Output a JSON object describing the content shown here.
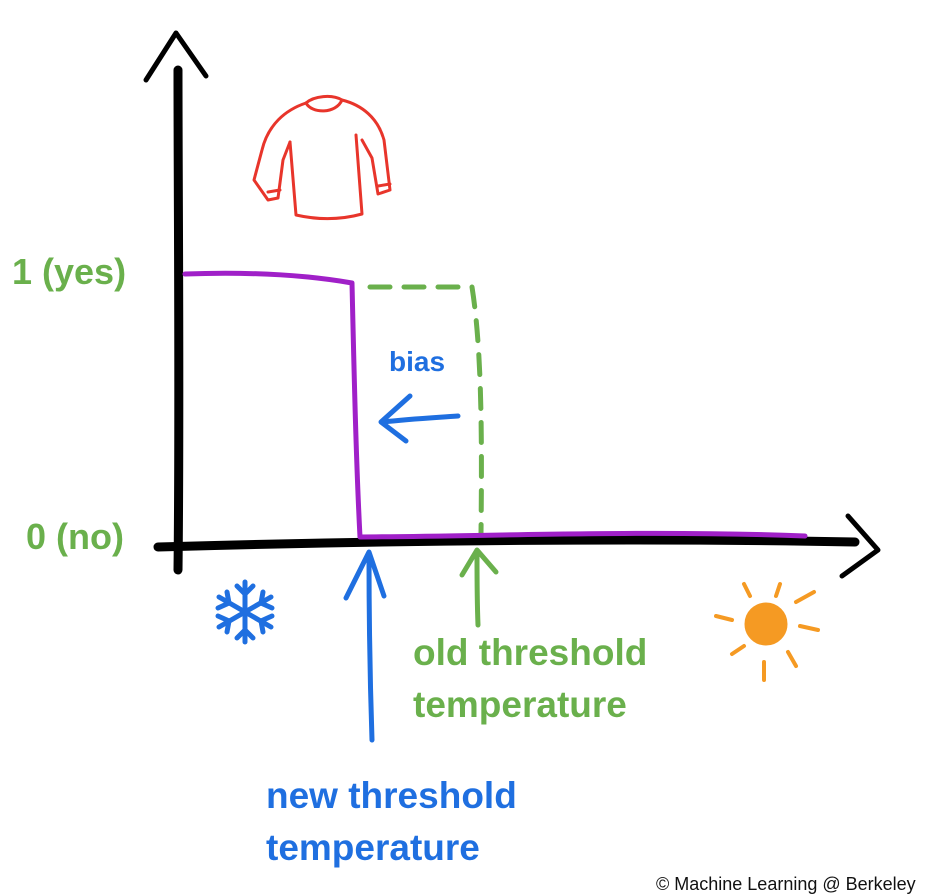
{
  "labels": {
    "yes": "1 (yes)",
    "no": "0 (no)",
    "bias": "bias",
    "old_threshold_line1": "old threshold",
    "old_threshold_line2": "temperature",
    "new_threshold_line1": "new threshold",
    "new_threshold_line2": "temperature",
    "copyright": "© Machine Learning @ Berkeley"
  },
  "icons": [
    "sweater-icon",
    "snowflake-icon",
    "sun-icon"
  ],
  "colors": {
    "axes": "#000000",
    "new_step": "#a020c8",
    "old_step": "#6ab04c",
    "blue_annotations": "#1f6fe0",
    "sweater": "#e8352b",
    "snowflake": "#1f6fe0",
    "sun": "#f59a23"
  }
}
